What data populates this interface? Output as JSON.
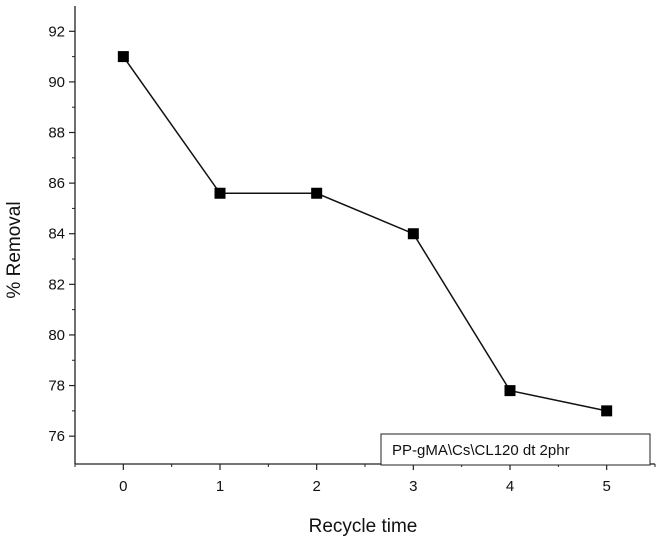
{
  "chart_data": {
    "type": "line",
    "title": "",
    "xlabel": "Recycle time",
    "ylabel": "% Removal",
    "x": [
      0,
      1,
      2,
      3,
      4,
      5
    ],
    "series": [
      {
        "name": "PP-gMA\\Cs\\CL120 dt 2phr",
        "values": [
          91.0,
          85.6,
          85.6,
          84.0,
          77.8,
          77.0
        ]
      }
    ],
    "xlim": [
      -0.5,
      5.5
    ],
    "ylim": [
      74.9,
      93.0
    ],
    "xticks": [
      "0",
      "1",
      "2",
      "3",
      "4",
      "5"
    ],
    "yticks": [
      "76",
      "78",
      "80",
      "82",
      "84",
      "86",
      "88",
      "90",
      "92"
    ],
    "grid": false,
    "legend_position": "bottom-right",
    "marker": "square",
    "line_color": "#111111",
    "marker_color": "#000000"
  }
}
